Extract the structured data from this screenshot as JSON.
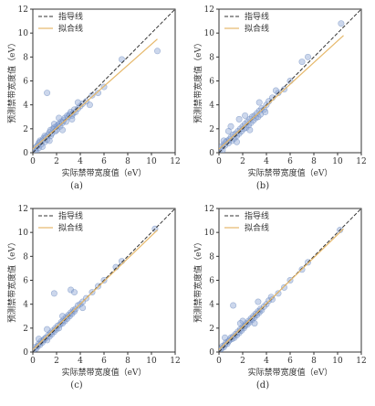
{
  "chart_data": [
    {
      "panel_label": "(a)",
      "type": "scatter",
      "xlabel": "实际禁带宽度值（eV）",
      "ylabel": "预测禁带宽度值（eV）",
      "xlim": [
        0,
        12
      ],
      "ylim": [
        0,
        12
      ],
      "xticks": [
        0,
        2,
        4,
        6,
        8,
        10,
        12
      ],
      "yticks": [
        0,
        2,
        4,
        6,
        8,
        10,
        12
      ],
      "legend": {
        "position": "top-left",
        "entries": [
          "指导线",
          "拟合线"
        ]
      },
      "guide_line": {
        "name": "指导线",
        "style": "dashed",
        "color": "#333333",
        "x": [
          0,
          12
        ],
        "y": [
          0,
          12
        ]
      },
      "fit_line": {
        "name": "拟合线",
        "color": "#e6b86a",
        "x": [
          0,
          10.5
        ],
        "y": [
          0.3,
          9.5
        ]
      },
      "points": {
        "x": [
          0.1,
          0.2,
          0.3,
          0.3,
          0.4,
          0.5,
          0.5,
          0.6,
          0.7,
          0.8,
          0.9,
          1.0,
          1.0,
          1.1,
          1.2,
          1.3,
          1.4,
          1.5,
          1.5,
          1.6,
          1.7,
          1.8,
          1.9,
          2.0,
          2.0,
          2.1,
          2.2,
          2.3,
          2.4,
          2.5,
          2.6,
          2.7,
          2.8,
          2.9,
          3.0,
          3.1,
          3.2,
          3.3,
          3.4,
          3.5,
          3.6,
          3.8,
          4.0,
          4.2,
          4.5,
          5.0,
          5.5,
          6.0,
          7.5,
          10.5,
          0.8,
          1.2,
          1.8,
          2.5,
          3.3,
          0.6,
          1.4,
          2.2,
          3.8,
          4.8
        ],
        "y": [
          0.3,
          0.2,
          0.5,
          0.1,
          0.6,
          0.4,
          0.8,
          0.9,
          0.7,
          1.0,
          1.2,
          0.9,
          1.4,
          1.3,
          1.1,
          1.5,
          1.7,
          1.4,
          1.9,
          1.6,
          2.0,
          2.1,
          1.8,
          2.2,
          1.9,
          2.3,
          2.4,
          2.2,
          2.6,
          2.5,
          2.7,
          2.9,
          2.6,
          3.1,
          3.0,
          3.2,
          3.4,
          3.1,
          3.3,
          3.6,
          3.4,
          3.7,
          3.9,
          4.1,
          4.3,
          4.8,
          5.0,
          5.5,
          7.8,
          8.5,
          0.5,
          5.0,
          2.4,
          1.9,
          2.8,
          1.0,
          1.0,
          2.9,
          4.2,
          4.0
        ]
      }
    },
    {
      "panel_label": "(b)",
      "type": "scatter",
      "xlabel": "实际禁带宽度值（eV）",
      "ylabel": "预测禁带宽度值（eV）",
      "xlim": [
        0,
        12
      ],
      "ylim": [
        0,
        12
      ],
      "xticks": [
        0,
        2,
        4,
        6,
        8,
        10,
        12
      ],
      "yticks": [
        0,
        2,
        4,
        6,
        8,
        10,
        12
      ],
      "legend": {
        "position": "top-left",
        "entries": [
          "指导线",
          "拟合线"
        ]
      },
      "guide_line": {
        "name": "指导线",
        "style": "dashed",
        "color": "#333333",
        "x": [
          0,
          12
        ],
        "y": [
          0,
          12
        ]
      },
      "fit_line": {
        "name": "拟合线",
        "color": "#e6b86a",
        "x": [
          0,
          10.5
        ],
        "y": [
          0.3,
          9.8
        ]
      },
      "points": {
        "x": [
          0.1,
          0.2,
          0.3,
          0.4,
          0.5,
          0.6,
          0.7,
          0.8,
          0.9,
          1.0,
          1.1,
          1.2,
          1.3,
          1.4,
          1.5,
          1.6,
          1.7,
          1.8,
          1.9,
          2.0,
          2.1,
          2.2,
          2.3,
          2.4,
          2.5,
          2.6,
          2.7,
          2.8,
          2.9,
          3.0,
          3.1,
          3.2,
          3.3,
          3.4,
          3.5,
          3.6,
          3.8,
          4.0,
          4.2,
          4.5,
          5.0,
          5.5,
          6.0,
          7.0,
          7.5,
          10.3,
          0.4,
          1.0,
          1.7,
          2.6,
          3.4,
          0.8,
          1.5,
          2.2,
          3.9,
          4.8
        ],
        "y": [
          0.3,
          0.5,
          0.2,
          0.7,
          0.6,
          0.9,
          1.0,
          0.8,
          1.1,
          1.3,
          1.0,
          1.5,
          1.2,
          1.6,
          1.4,
          1.8,
          1.6,
          2.0,
          1.8,
          2.2,
          2.0,
          2.4,
          2.1,
          2.6,
          2.3,
          2.8,
          2.5,
          3.0,
          2.7,
          3.1,
          2.9,
          3.3,
          3.0,
          3.5,
          3.2,
          3.7,
          3.6,
          4.0,
          4.3,
          4.6,
          5.0,
          5.3,
          6.0,
          7.6,
          8.0,
          10.8,
          1.0,
          2.2,
          2.8,
          1.9,
          4.2,
          1.8,
          0.9,
          3.1,
          3.4,
          5.2
        ]
      }
    },
    {
      "panel_label": "(c)",
      "type": "scatter",
      "xlabel": "实际禁带宽度值（eV）",
      "ylabel": "预测禁带宽度值（eV）",
      "xlim": [
        0,
        12
      ],
      "ylim": [
        0,
        12
      ],
      "xticks": [
        0,
        2,
        4,
        6,
        8,
        10,
        12
      ],
      "yticks": [
        0,
        2,
        4,
        6,
        8,
        10,
        12
      ],
      "legend": {
        "position": "top-left",
        "entries": [
          "指导线",
          "拟合线"
        ]
      },
      "guide_line": {
        "name": "指导线",
        "style": "dashed",
        "color": "#333333",
        "x": [
          0,
          12
        ],
        "y": [
          0,
          12
        ]
      },
      "fit_line": {
        "name": "拟合线",
        "color": "#e6b86a",
        "x": [
          0,
          10.5
        ],
        "y": [
          0.2,
          10.2
        ]
      },
      "points": {
        "x": [
          0.1,
          0.2,
          0.3,
          0.4,
          0.5,
          0.6,
          0.7,
          0.8,
          0.9,
          1.0,
          1.1,
          1.2,
          1.3,
          1.4,
          1.5,
          1.6,
          1.7,
          1.8,
          1.9,
          2.0,
          2.1,
          2.2,
          2.3,
          2.4,
          2.5,
          2.6,
          2.7,
          2.8,
          2.9,
          3.0,
          3.1,
          3.2,
          3.3,
          3.4,
          3.5,
          3.6,
          3.8,
          4.0,
          4.2,
          4.5,
          5.0,
          5.5,
          6.0,
          7.0,
          7.5,
          10.3,
          1.8,
          3.2,
          3.5,
          0.5,
          1.2,
          2.5,
          4.2
        ],
        "y": [
          0.2,
          0.4,
          0.3,
          0.5,
          0.7,
          0.6,
          0.9,
          0.8,
          1.0,
          1.1,
          1.2,
          1.0,
          1.4,
          1.3,
          1.6,
          1.5,
          1.8,
          1.7,
          2.0,
          1.9,
          2.2,
          2.0,
          2.3,
          2.5,
          2.4,
          2.7,
          2.6,
          2.9,
          2.8,
          3.1,
          3.0,
          3.3,
          3.2,
          3.5,
          3.4,
          3.6,
          3.9,
          4.0,
          4.2,
          4.5,
          5.0,
          5.5,
          6.0,
          7.1,
          7.6,
          10.3,
          4.9,
          5.2,
          5.0,
          1.1,
          1.9,
          3.0,
          3.7
        ]
      }
    },
    {
      "panel_label": "(d)",
      "type": "scatter",
      "xlabel": "实际禁带宽度值（eV）",
      "ylabel": "预测禁带宽度值（eV）",
      "xlim": [
        0,
        12
      ],
      "ylim": [
        0,
        12
      ],
      "xticks": [
        0,
        2,
        4,
        6,
        8,
        10,
        12
      ],
      "yticks": [
        0,
        2,
        4,
        6,
        8,
        10,
        12
      ],
      "legend": {
        "position": "top-left",
        "entries": [
          "指导线",
          "拟合线"
        ]
      },
      "guide_line": {
        "name": "指导线",
        "style": "dashed",
        "color": "#333333",
        "x": [
          0,
          12
        ],
        "y": [
          0,
          12
        ]
      },
      "fit_line": {
        "name": "拟合线",
        "color": "#e6b86a",
        "x": [
          0,
          10.5
        ],
        "y": [
          0.2,
          10.3
        ]
      },
      "points": {
        "x": [
          0.1,
          0.2,
          0.3,
          0.4,
          0.5,
          0.6,
          0.7,
          0.8,
          0.9,
          1.0,
          1.1,
          1.2,
          1.3,
          1.4,
          1.5,
          1.6,
          1.7,
          1.8,
          1.9,
          2.0,
          2.1,
          2.2,
          2.3,
          2.4,
          2.5,
          2.6,
          2.7,
          2.8,
          2.9,
          3.0,
          3.1,
          3.2,
          3.3,
          3.4,
          3.5,
          3.6,
          3.8,
          4.0,
          4.2,
          4.5,
          5.0,
          5.5,
          6.0,
          7.0,
          7.5,
          10.2,
          1.2,
          2.0,
          3.0,
          3.3,
          0.5,
          1.8,
          4.4
        ],
        "y": [
          0.2,
          0.3,
          0.5,
          0.4,
          0.6,
          0.8,
          0.7,
          0.9,
          1.0,
          1.2,
          1.1,
          1.3,
          1.2,
          1.5,
          1.4,
          1.7,
          1.6,
          1.9,
          1.8,
          2.1,
          2.0,
          2.2,
          2.4,
          2.3,
          2.6,
          2.5,
          2.8,
          2.7,
          3.0,
          2.9,
          3.2,
          3.1,
          3.4,
          3.3,
          3.6,
          3.5,
          3.8,
          4.0,
          4.3,
          4.4,
          4.9,
          5.4,
          6.0,
          6.9,
          7.5,
          10.2,
          3.9,
          2.6,
          2.4,
          4.2,
          1.2,
          2.4,
          4.6
        ]
      }
    }
  ]
}
